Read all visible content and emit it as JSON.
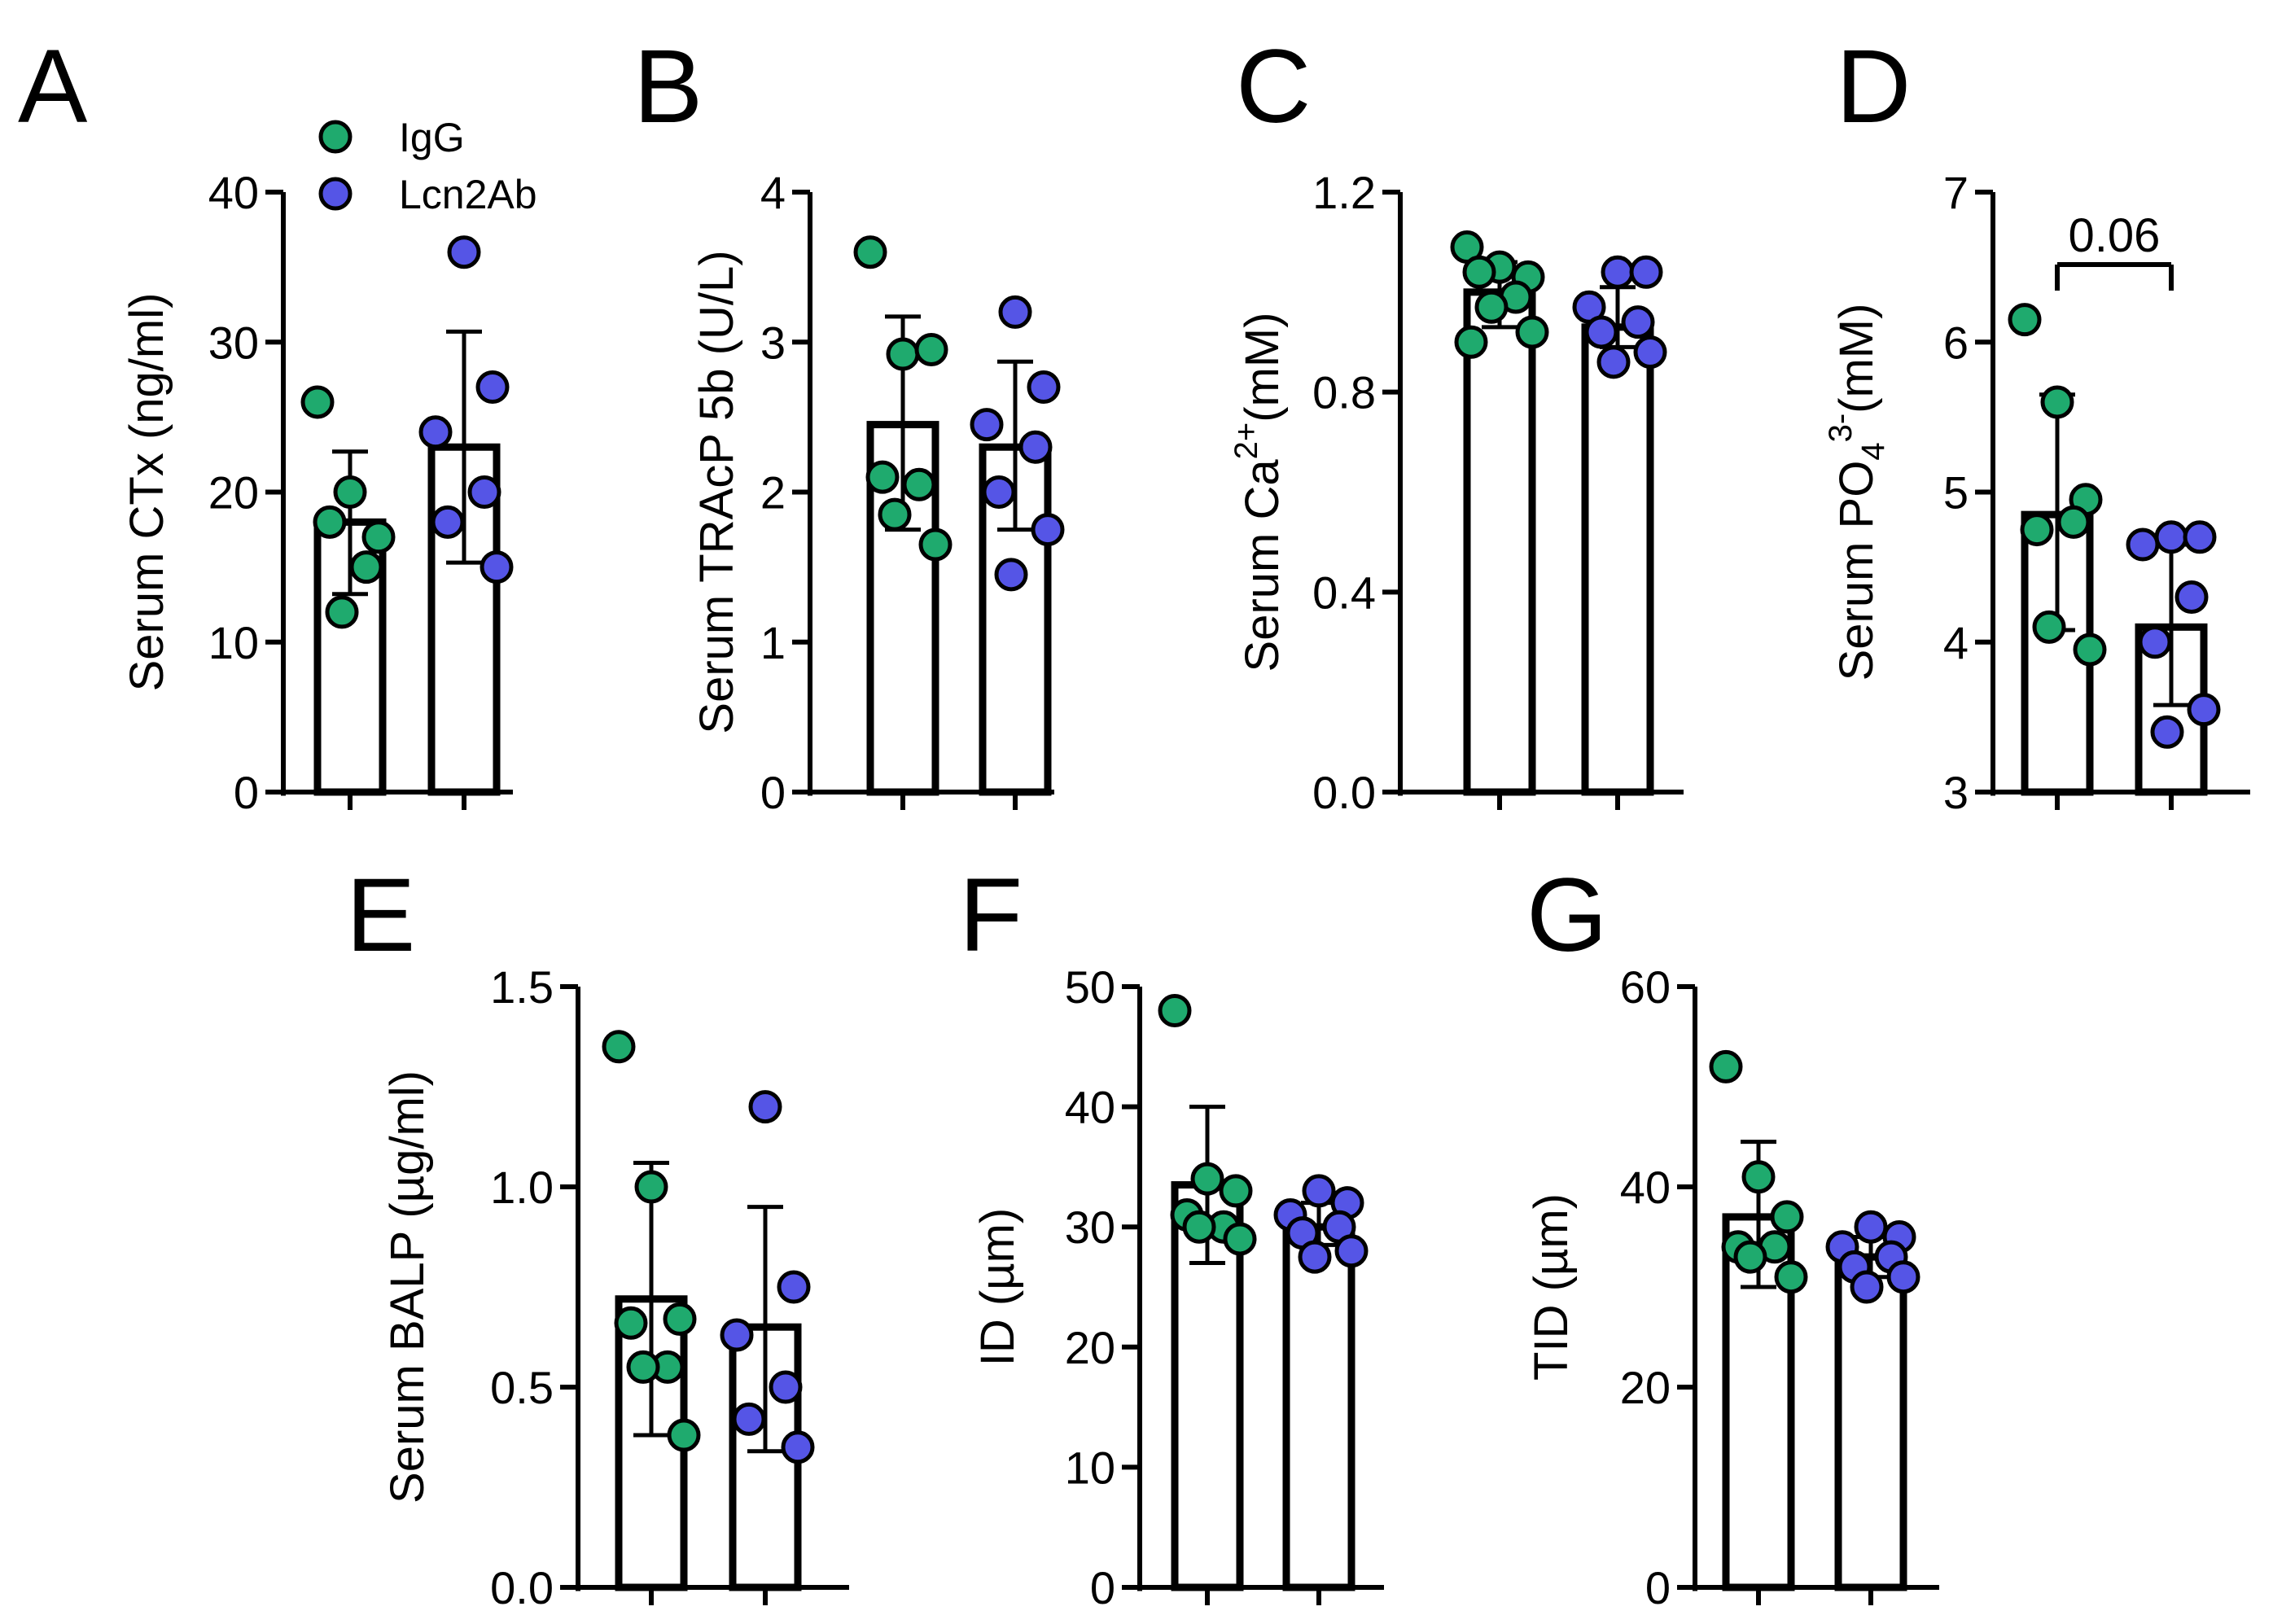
{
  "colors": {
    "igg": "#1faa6e",
    "lcn2ab": "#5555e6",
    "ink": "#000000",
    "bar_fill": "#ffffff"
  },
  "legend": {
    "entries": [
      {
        "name": "IgG",
        "color": "#1faa6e"
      },
      {
        "name": "Lcn2Ab",
        "color": "#5555e6"
      }
    ]
  },
  "chart_data": [
    {
      "panel": "A",
      "type": "bar",
      "ylabel": "Serum CTx (ng/ml)",
      "ylim": [
        0,
        40
      ],
      "yticks": [
        "0",
        "10",
        "20",
        "30",
        "40"
      ],
      "series": [
        {
          "name": "IgG",
          "mean": 18,
          "sd_low": 13.2,
          "sd_high": 22.7,
          "points": [
            26,
            20,
            17,
            18,
            15,
            12
          ]
        },
        {
          "name": "Lcn2Ab",
          "mean": 23,
          "sd_low": 15.3,
          "sd_high": 30.7,
          "points": [
            36,
            27,
            24,
            20,
            18,
            15
          ]
        }
      ]
    },
    {
      "panel": "B",
      "type": "bar",
      "ylabel": "Serum TRAcP 5b (U/L)",
      "ylim": [
        0,
        4
      ],
      "yticks": [
        "0",
        "1",
        "2",
        "3",
        "4"
      ],
      "series": [
        {
          "name": "IgG",
          "mean": 2.45,
          "sd_low": 1.75,
          "sd_high": 3.17,
          "points": [
            3.6,
            2.92,
            2.95,
            2.1,
            2.05,
            1.85,
            1.65
          ]
        },
        {
          "name": "Lcn2Ab",
          "mean": 2.3,
          "sd_low": 1.75,
          "sd_high": 2.87,
          "points": [
            3.2,
            2.7,
            2.45,
            2.3,
            2.0,
            1.75,
            1.45
          ]
        }
      ]
    },
    {
      "panel": "C",
      "type": "bar",
      "ylabel": "Serum Ca",
      "ylabel_sup": "2+",
      "ylabel_unit": "(mM)",
      "ylim": [
        0,
        1.2
      ],
      "yticks": [
        "0.0",
        "0.4",
        "0.8",
        "1.2"
      ],
      "series": [
        {
          "name": "IgG",
          "mean": 1.0,
          "sd_low": 0.93,
          "sd_high": 1.06,
          "points": [
            1.09,
            1.05,
            1.03,
            1.04,
            0.99,
            0.97,
            0.92,
            0.9
          ]
        },
        {
          "name": "Lcn2Ab",
          "mean": 0.93,
          "sd_low": 0.89,
          "sd_high": 1.01,
          "points": [
            1.04,
            1.04,
            0.97,
            0.94,
            0.92,
            0.88,
            0.86
          ]
        }
      ]
    },
    {
      "panel": "D",
      "type": "bar",
      "ylabel": "Serum PO",
      "ylabel_sub": "4",
      "ylabel_sup": "3-",
      "ylabel_unit": "(mM)",
      "ylim": [
        3,
        7
      ],
      "yticks": [
        "3",
        "4",
        "5",
        "6",
        "7"
      ],
      "annotation": "0.06",
      "series": [
        {
          "name": "IgG",
          "mean": 4.85,
          "sd_low": 4.08,
          "sd_high": 5.65,
          "points": [
            6.15,
            5.6,
            4.95,
            4.75,
            4.8,
            4.1,
            3.95
          ]
        },
        {
          "name": "Lcn2Ab",
          "mean": 4.1,
          "sd_low": 3.58,
          "sd_high": 4.65,
          "points": [
            4.7,
            4.7,
            4.65,
            4.3,
            4.0,
            3.55,
            3.4
          ]
        }
      ]
    },
    {
      "panel": "E",
      "type": "bar",
      "ylabel": "Serum BALP (µg/ml)",
      "ylim": [
        0,
        1.5
      ],
      "yticks": [
        "0.0",
        "0.5",
        "1.0",
        "1.5"
      ],
      "series": [
        {
          "name": "IgG",
          "mean": 0.72,
          "sd_low": 0.38,
          "sd_high": 1.06,
          "points": [
            1.35,
            1.0,
            0.67,
            0.66,
            0.55,
            0.55,
            0.38
          ]
        },
        {
          "name": "Lcn2Ab",
          "mean": 0.65,
          "sd_low": 0.34,
          "sd_high": 0.95,
          "points": [
            1.2,
            0.75,
            0.63,
            0.5,
            0.42,
            0.35
          ]
        }
      ]
    },
    {
      "panel": "F",
      "type": "bar",
      "ylabel": "ID (µm)",
      "ylim": [
        0,
        50
      ],
      "yticks": [
        "0",
        "10",
        "20",
        "30",
        "40",
        "50"
      ],
      "series": [
        {
          "name": "IgG",
          "mean": 33.5,
          "sd_low": 27,
          "sd_high": 40,
          "points": [
            48,
            34,
            33,
            31,
            30,
            30,
            29
          ]
        },
        {
          "name": "Lcn2Ab",
          "mean": 30,
          "sd_low": 28.5,
          "sd_high": 32,
          "points": [
            33,
            32,
            31,
            30,
            29.5,
            28,
            27.5
          ]
        }
      ]
    },
    {
      "panel": "G",
      "type": "bar",
      "ylabel": "TID (µm)",
      "ylim": [
        0,
        60
      ],
      "yticks": [
        "0",
        "20",
        "40",
        "60"
      ],
      "series": [
        {
          "name": "IgG",
          "mean": 37,
          "sd_low": 30,
          "sd_high": 44.5,
          "points": [
            52,
            41,
            37,
            34,
            34,
            33,
            31
          ]
        },
        {
          "name": "Lcn2Ab",
          "mean": 33,
          "sd_low": 31,
          "sd_high": 35,
          "points": [
            36,
            35,
            34,
            33,
            32,
            31,
            30
          ]
        }
      ]
    }
  ]
}
